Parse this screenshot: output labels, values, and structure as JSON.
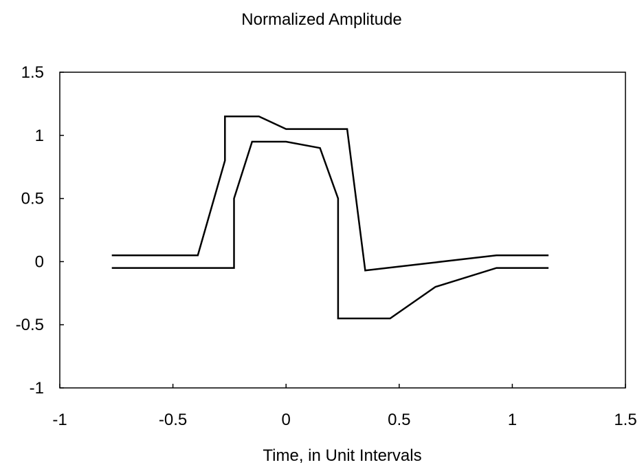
{
  "chart_data": {
    "type": "line",
    "title": "Normalized Amplitude",
    "xlabel": "Time, in Unit Intervals",
    "ylabel": "",
    "xlim": [
      -1,
      1.5
    ],
    "ylim": [
      -1,
      1.5
    ],
    "x_ticks": [
      -1,
      -0.5,
      0,
      0.5,
      1,
      1.5
    ],
    "y_ticks": [
      -1,
      -0.5,
      0,
      0.5,
      1,
      1.5
    ],
    "x_tick_labels": [
      "-1",
      "-0.5",
      "0",
      "0.5",
      "1",
      "1.5"
    ],
    "y_tick_labels": [
      "-1",
      "-0.5",
      "0",
      "0.5",
      "1",
      "1.5"
    ],
    "grid": false,
    "line_color": "#000000",
    "series": [
      {
        "points": [
          [
            -0.77,
            0.05
          ],
          [
            -0.39,
            0.05
          ],
          [
            -0.27,
            0.8
          ],
          [
            -0.27,
            1.15
          ],
          [
            -0.12,
            1.15
          ],
          [
            0.0,
            1.05
          ],
          [
            0.27,
            1.05
          ],
          [
            0.35,
            -0.07
          ],
          [
            0.93,
            0.05
          ],
          [
            1.16,
            0.05
          ]
        ]
      },
      {
        "points": [
          [
            -0.77,
            -0.05
          ],
          [
            -0.23,
            -0.05
          ],
          [
            -0.23,
            0.5
          ],
          [
            -0.15,
            0.95
          ],
          [
            0.0,
            0.95
          ],
          [
            0.15,
            0.9
          ],
          [
            0.23,
            0.5
          ],
          [
            0.23,
            -0.45
          ],
          [
            0.46,
            -0.45
          ],
          [
            0.66,
            -0.2
          ],
          [
            0.93,
            -0.05
          ],
          [
            1.16,
            -0.05
          ]
        ]
      }
    ]
  }
}
